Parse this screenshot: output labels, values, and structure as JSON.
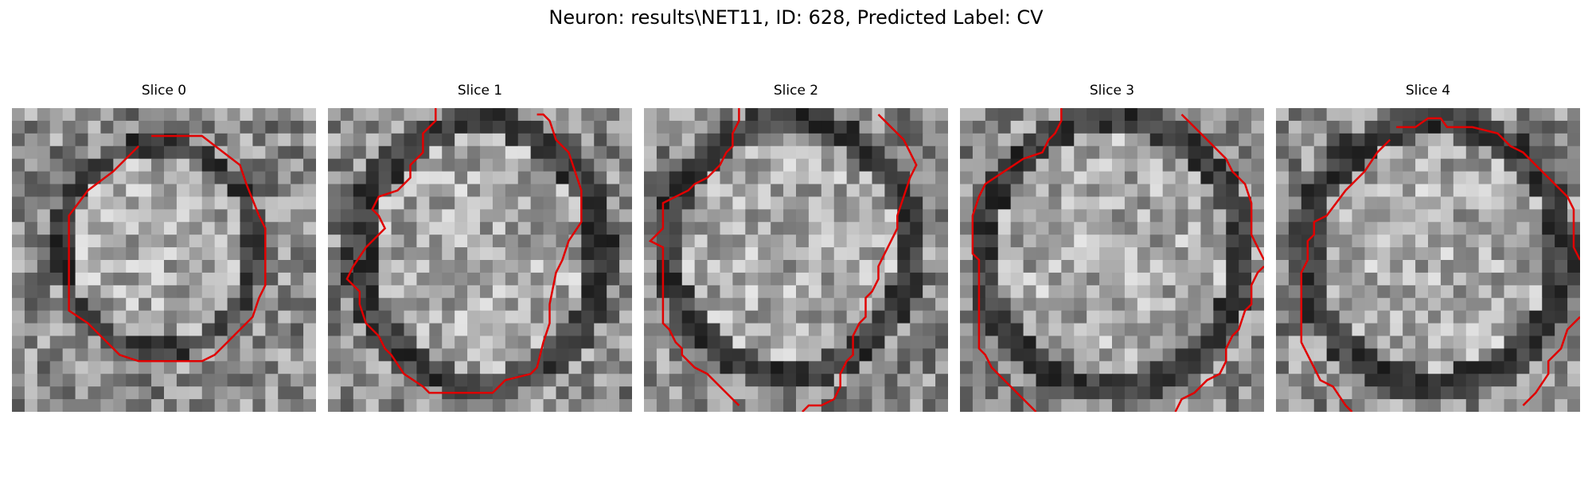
{
  "figure": {
    "title": "Neuron: results\\NET11, ID: 628, Predicted Label: CV"
  },
  "contour_color": "#e00000",
  "colormap": "grayscale",
  "panels": [
    {
      "title": "Slice 0"
    },
    {
      "title": "Slice 1"
    },
    {
      "title": "Slice 2"
    },
    {
      "title": "Slice 3"
    },
    {
      "title": "Slice 4"
    }
  ]
}
